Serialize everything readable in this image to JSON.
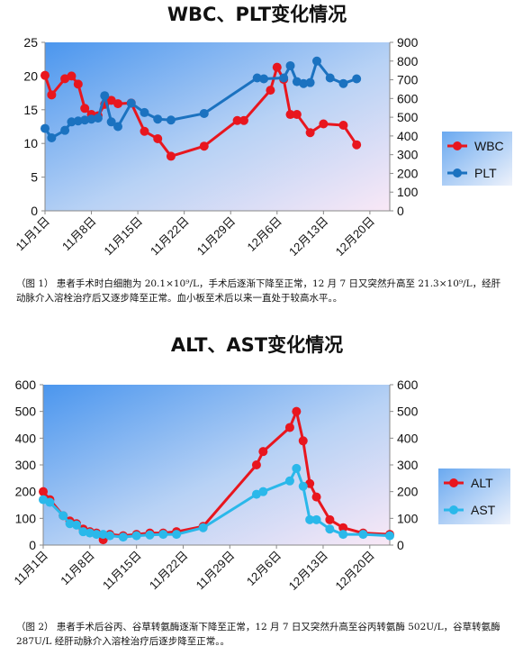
{
  "chart_data": [
    {
      "type": "line",
      "title": "WBC、PLT变化情况",
      "x": [
        "11月1日",
        "11月2日",
        "11月3日",
        "11月5日",
        "11月6日",
        "11月7日",
        "11月8日",
        "11月9日",
        "11月10日",
        "11月11日",
        "11月12日",
        "11月13日",
        "11月15日",
        "11月17日",
        "11月19日",
        "11月21日",
        "11月25日",
        "11月30日",
        "12月1日",
        "12月5日",
        "12月6日",
        "12月7日",
        "12月8日",
        "12月9日",
        "12月10日",
        "12月11日",
        "12月12日",
        "12月14日",
        "12月16日",
        "12月19日",
        "12月21日"
      ],
      "x_ticks": [
        "11月1日",
        "11月8日",
        "11月15日",
        "11月22日",
        "11月29日",
        "12月6日",
        "12月13日",
        "12月20日"
      ],
      "x_range": [
        0,
        52
      ],
      "y_left_range": [
        0,
        25
      ],
      "y_left_ticks": [
        "0",
        "5",
        "10",
        "15",
        "20",
        "25"
      ],
      "y_right_range": [
        0,
        900
      ],
      "y_right_ticks": [
        "0",
        "100",
        "200",
        "300",
        "400",
        "500",
        "600",
        "700",
        "800",
        "900"
      ],
      "series": [
        {
          "name": "WBC",
          "axis": "left",
          "color": "#e8161e",
          "points": [
            [
              0,
              20.1
            ],
            [
              1,
              17.2
            ],
            [
              3,
              19.6
            ],
            [
              4,
              20.0
            ],
            [
              5,
              18.8
            ],
            [
              6,
              15.2
            ],
            [
              7,
              14.3
            ],
            [
              8,
              14.1
            ],
            [
              9,
              15.8
            ],
            [
              10,
              16.4
            ],
            [
              11,
              15.9
            ],
            [
              13,
              16.0
            ],
            [
              15,
              11.8
            ],
            [
              17,
              10.7
            ],
            [
              19,
              8.1
            ],
            [
              24,
              9.6
            ],
            [
              29,
              13.4
            ],
            [
              30,
              13.4
            ],
            [
              34,
              17.9
            ],
            [
              35,
              21.3
            ],
            [
              36,
              19.5
            ],
            [
              37,
              14.3
            ],
            [
              38,
              14.3
            ],
            [
              40,
              11.6
            ],
            [
              42,
              12.9
            ],
            [
              45,
              12.7
            ],
            [
              47,
              9.8
            ]
          ]
        },
        {
          "name": "PLT",
          "axis": "right",
          "color": "#1b72c0",
          "points": [
            [
              0,
              440
            ],
            [
              1,
              390
            ],
            [
              3,
              430
            ],
            [
              4,
              475
            ],
            [
              5,
              480
            ],
            [
              6,
              485
            ],
            [
              7,
              490
            ],
            [
              8,
              495
            ],
            [
              9,
              615
            ],
            [
              10,
              475
            ],
            [
              11,
              450
            ],
            [
              13,
              575
            ],
            [
              15,
              525
            ],
            [
              17,
              490
            ],
            [
              19,
              485
            ],
            [
              24,
              520
            ],
            [
              32,
              710
            ],
            [
              33,
              705
            ],
            [
              36,
              710
            ],
            [
              37,
              775
            ],
            [
              38,
              690
            ],
            [
              39,
              680
            ],
            [
              40,
              685
            ],
            [
              41,
              800
            ],
            [
              43,
              710
            ],
            [
              45,
              680
            ],
            [
              47,
              705
            ]
          ]
        }
      ],
      "legend": "right"
    },
    {
      "type": "line",
      "title": "ALT、AST变化情况",
      "x_ticks": [
        "11月1日",
        "11月8日",
        "11月15日",
        "11月22日",
        "11月29日",
        "12月6日",
        "12月13日",
        "12月20日"
      ],
      "x_range": [
        0,
        52
      ],
      "y_left_range": [
        0,
        600
      ],
      "y_left_ticks": [
        "0",
        "100",
        "200",
        "300",
        "400",
        "500",
        "600"
      ],
      "y_right_range": [
        0,
        600
      ],
      "y_right_ticks": [
        "0",
        "100",
        "200",
        "300",
        "400",
        "500",
        "600"
      ],
      "series": [
        {
          "name": "ALT",
          "axis": "left",
          "color": "#e8161e",
          "points": [
            [
              0,
              200
            ],
            [
              1,
              170
            ],
            [
              3,
              110
            ],
            [
              4,
              90
            ],
            [
              5,
              80
            ],
            [
              6,
              60
            ],
            [
              7,
              50
            ],
            [
              8,
              45
            ],
            [
              9,
              20
            ],
            [
              10,
              40
            ],
            [
              12,
              35
            ],
            [
              14,
              40
            ],
            [
              16,
              45
            ],
            [
              18,
              45
            ],
            [
              20,
              50
            ],
            [
              24,
              70
            ],
            [
              32,
              300
            ],
            [
              33,
              350
            ],
            [
              37,
              440
            ],
            [
              38,
              500
            ],
            [
              39,
              390
            ],
            [
              40,
              230
            ],
            [
              41,
              180
            ],
            [
              43,
              95
            ],
            [
              45,
              65
            ],
            [
              48,
              45
            ],
            [
              52,
              40
            ]
          ]
        },
        {
          "name": "AST",
          "axis": "left",
          "color": "#2ab8ea",
          "points": [
            [
              0,
              170
            ],
            [
              1,
              160
            ],
            [
              3,
              110
            ],
            [
              4,
              80
            ],
            [
              5,
              75
            ],
            [
              6,
              50
            ],
            [
              7,
              45
            ],
            [
              8,
              40
            ],
            [
              9,
              40
            ],
            [
              10,
              35
            ],
            [
              12,
              30
            ],
            [
              14,
              35
            ],
            [
              16,
              38
            ],
            [
              18,
              40
            ],
            [
              20,
              40
            ],
            [
              24,
              65
            ],
            [
              32,
              190
            ],
            [
              33,
              200
            ],
            [
              37,
              240
            ],
            [
              38,
              287
            ],
            [
              39,
              220
            ],
            [
              40,
              95
            ],
            [
              41,
              95
            ],
            [
              43,
              60
            ],
            [
              45,
              40
            ],
            [
              48,
              40
            ],
            [
              52,
              35
            ]
          ]
        }
      ],
      "legend": "right"
    }
  ],
  "caption1": "（图 1）  患者手术时白细胞为 20.1×10⁹/L，手术后逐渐下降至正常，12 月 7 日又突然升高至  21.3×10⁹/L，经肝动脉介入溶栓治疗后又逐步降至正常。血小板至术后以来一直处于较高水平。。",
  "caption2": "（图 2）  患者手术后谷丙、谷草转氨酶逐渐下降至正常，12 月 7 日又突然升高至谷丙转氨酶 502U/L，谷草转氨酶 287U/L 经肝动脉介入溶栓治疗后逐步降至正常。。"
}
